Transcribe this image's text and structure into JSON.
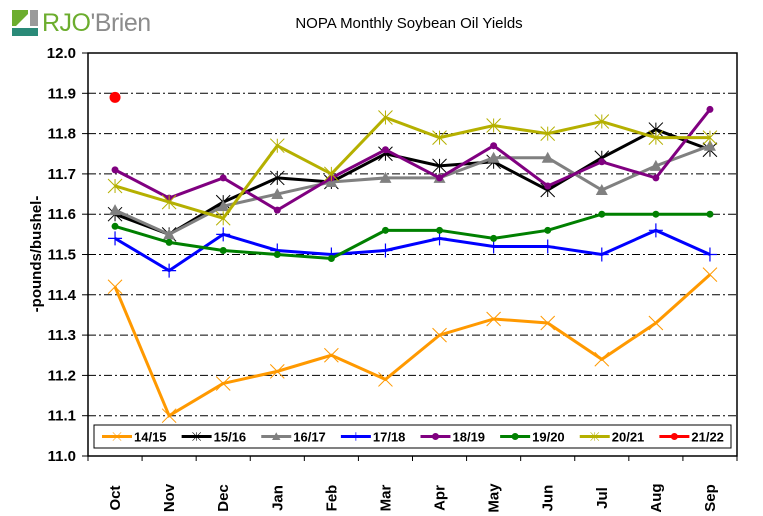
{
  "logo": {
    "part1": "RJO",
    "part2": "'Brien",
    "colors": {
      "green": "#6cad2e",
      "teal": "#2a8a78",
      "gray": "#8c8c8c"
    }
  },
  "chart_data": {
    "type": "line",
    "title": "NOPA Monthly Soybean Oil Yields",
    "xlabel": "",
    "ylabel": "-pounds/bushel-",
    "ylim": [
      11.0,
      12.0
    ],
    "ytick_step": 0.1,
    "yticks": [
      "11.0",
      "11.1",
      "11.2",
      "11.3",
      "11.4",
      "11.5",
      "11.6",
      "11.7",
      "11.8",
      "11.9",
      "12.0"
    ],
    "categories": [
      "Oct",
      "Nov",
      "Dec",
      "Jan",
      "Feb",
      "Mar",
      "Apr",
      "May",
      "Jun",
      "Jul",
      "Aug",
      "Sep"
    ],
    "grid": "horizontal-dashdot",
    "legend_position": "bottom-inside",
    "series": [
      {
        "name": "14/15",
        "color": "#ff9900",
        "marker": "x",
        "values": [
          11.42,
          11.1,
          11.18,
          11.21,
          11.25,
          11.19,
          11.3,
          11.34,
          11.33,
          11.24,
          11.33,
          11.45
        ]
      },
      {
        "name": "15/16",
        "color": "#000000",
        "marker": "star",
        "values": [
          11.6,
          11.55,
          11.63,
          11.69,
          11.68,
          11.75,
          11.72,
          11.73,
          11.66,
          11.74,
          11.81,
          11.76
        ]
      },
      {
        "name": "16/17",
        "color": "#808080",
        "marker": "triangle",
        "values": [
          11.61,
          11.55,
          11.62,
          11.65,
          11.68,
          11.69,
          11.69,
          11.74,
          11.74,
          11.66,
          11.72,
          11.77
        ]
      },
      {
        "name": "17/18",
        "color": "#0000ff",
        "marker": "plus",
        "values": [
          11.54,
          11.46,
          11.55,
          11.51,
          11.5,
          11.51,
          11.54,
          11.52,
          11.52,
          11.5,
          11.56,
          11.5
        ]
      },
      {
        "name": "18/19",
        "color": "#800080",
        "marker": "circle",
        "values": [
          11.71,
          11.64,
          11.69,
          11.61,
          11.69,
          11.76,
          11.69,
          11.77,
          11.67,
          11.73,
          11.69,
          11.86
        ]
      },
      {
        "name": "19/20",
        "color": "#008000",
        "marker": "circle",
        "values": [
          11.57,
          11.53,
          11.51,
          11.5,
          11.49,
          11.56,
          11.56,
          11.54,
          11.56,
          11.6,
          11.6,
          11.6
        ]
      },
      {
        "name": "20/21",
        "color": "#b5b000",
        "marker": "star",
        "values": [
          11.67,
          11.63,
          11.59,
          11.77,
          11.7,
          11.84,
          11.79,
          11.82,
          11.8,
          11.83,
          11.79,
          11.79
        ]
      },
      {
        "name": "21/22",
        "color": "#ff0000",
        "marker": "big-circle",
        "values": [
          11.89,
          null,
          null,
          null,
          null,
          null,
          null,
          null,
          null,
          null,
          null,
          null
        ]
      }
    ]
  }
}
